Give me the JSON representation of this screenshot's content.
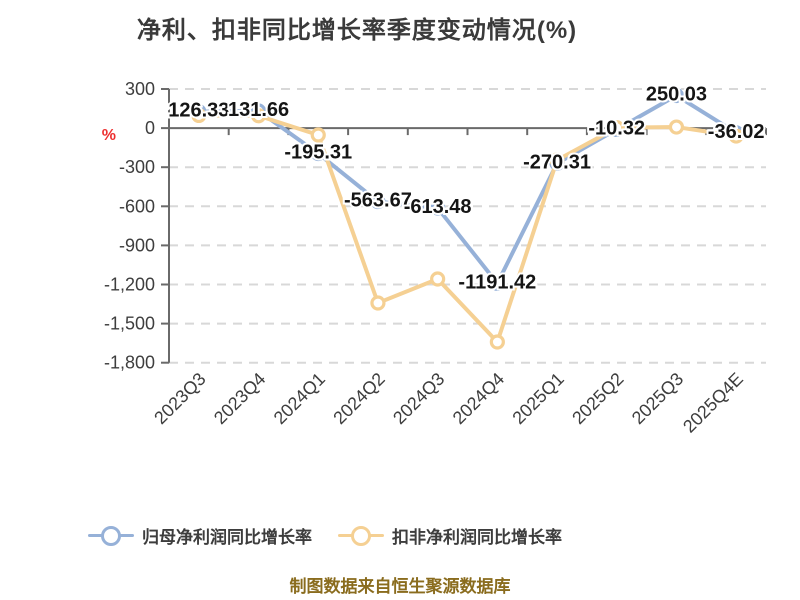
{
  "title": "净利、扣非同比增长率季度变动情况(%)",
  "footer": "制图数据来自恒生聚源数据库",
  "y_axis": {
    "unit": "%",
    "unit_color": "#ed2f2f"
  },
  "chart_data": {
    "type": "line",
    "title": "净利、扣非同比增长率季度变动情况(%)",
    "categories": [
      "2023Q3",
      "2023Q4",
      "2024Q1",
      "2024Q2",
      "2024Q3",
      "2024Q4",
      "2025Q1",
      "2025Q2",
      "2025Q3",
      "2025Q4E"
    ],
    "series": [
      {
        "name": "归母净利润同比增长率",
        "color": "#96b1d8",
        "values": [
          126.33,
          131.66,
          -195.31,
          -563.67,
          -613.48,
          -1191.42,
          -270.31,
          -10.32,
          250.03,
          -36.02
        ],
        "labels": [
          "126.33",
          "131.66",
          "-195.31",
          "-563.67",
          "-613.48",
          "-1191.42",
          "-270.31",
          "-10.32",
          "250.03",
          "-36.02"
        ],
        "show_labels": true
      },
      {
        "name": "扣非净利润同比增长率",
        "color": "#f5d093",
        "values": [
          97,
          95,
          -53,
          -1342,
          -1158,
          -1641,
          -246,
          3,
          8,
          -61
        ],
        "show_labels": false
      }
    ],
    "ylabel": "%",
    "ylim": [
      -1800,
      300
    ],
    "y_ticks": [
      300,
      0,
      -300,
      -600,
      -900,
      -1200,
      -1500,
      -1800
    ],
    "grid": "horizontal-dashed",
    "legend_position": "bottom"
  }
}
